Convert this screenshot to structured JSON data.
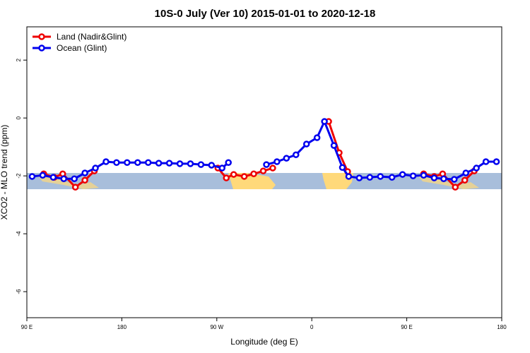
{
  "chart_data": {
    "type": "line",
    "title": "10S-0 July (Ver 10)   2015-01-01 to 2020-12-18",
    "xlabel": "Longitude (deg E)",
    "ylabel": "XCO2 - MLO trend (ppm)",
    "xlim": [
      90,
      540
    ],
    "xticks": [
      {
        "value": 90,
        "label": "90 E"
      },
      {
        "value": 180,
        "label": "180"
      },
      {
        "value": 270,
        "label": "90 W"
      },
      {
        "value": 360,
        "label": "0"
      },
      {
        "value": 450,
        "label": "90 E"
      },
      {
        "value": 540,
        "label": "180"
      }
    ],
    "ylim": [
      -6.9,
      3.15
    ],
    "yticks": [
      -6,
      -4,
      -2,
      0,
      2
    ],
    "legend": "top-left",
    "series": [
      {
        "name": "Land (Nadir&Glint)",
        "color": "#ee0000",
        "x": [
          106,
          116,
          124,
          136,
          145,
          154,
          200,
          271,
          279,
          286,
          296,
          305,
          314,
          323,
          345,
          376,
          386,
          394,
          430,
          466,
          476,
          484,
          496,
          505,
          514
        ],
        "values": [
          -1.93,
          -2.05,
          -1.93,
          -2.39,
          -2.15,
          -1.83,
          null,
          -1.73,
          -2.07,
          -1.95,
          -2.02,
          -1.93,
          -1.83,
          -1.73,
          null,
          -0.12,
          -1.2,
          -1.85,
          null,
          -1.93,
          -2.02,
          -1.93,
          -2.39,
          -2.15,
          -1.83
        ]
      },
      {
        "name": "Ocean (Glint)",
        "color": "#0000ee",
        "x": [
          95,
          105,
          115,
          125,
          135,
          145,
          155,
          165,
          175,
          185,
          195,
          205,
          215,
          225,
          235,
          245,
          255,
          265,
          275,
          281,
          300,
          317,
          327,
          336,
          345,
          355,
          365,
          372,
          381,
          389,
          395,
          405,
          415,
          425,
          436,
          446,
          456,
          466,
          476,
          485,
          495,
          506,
          516,
          525,
          535
        ],
        "values": [
          -2.02,
          -1.98,
          -2.05,
          -2.1,
          -2.1,
          -1.9,
          -1.73,
          -1.51,
          -1.54,
          -1.54,
          -1.54,
          -1.54,
          -1.56,
          -1.56,
          -1.58,
          -1.58,
          -1.61,
          -1.63,
          -1.73,
          -1.54,
          null,
          -1.61,
          -1.51,
          -1.39,
          -1.27,
          -0.9,
          -0.68,
          -0.12,
          -0.95,
          -1.71,
          -2.02,
          -2.07,
          -2.05,
          -2.02,
          -2.05,
          -1.95,
          -2.0,
          -1.98,
          -2.07,
          -2.1,
          -2.12,
          -1.9,
          -1.73,
          -1.51,
          -1.51
        ]
      }
    ]
  }
}
